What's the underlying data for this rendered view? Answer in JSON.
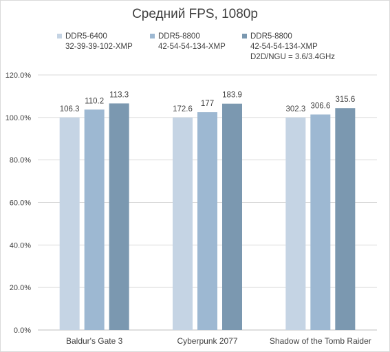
{
  "chart_data": {
    "type": "bar",
    "title": "Средний FPS, 1080p",
    "categories": [
      "Baldur's Gate 3",
      "Cyberpunk 2077",
      "Shadow of the Tomb Raider"
    ],
    "series": [
      {
        "name": "DDR5-6400",
        "name_lines": [
          "DDR5-6400",
          "32-39-39-102-XMP"
        ],
        "color": "#c5d4e4",
        "values": [
          100.0,
          100.0,
          100.0
        ],
        "labels": [
          "106.3",
          "172.6",
          "302.3"
        ]
      },
      {
        "name": "DDR5-8800",
        "name_lines": [
          "DDR5-8800",
          "42-54-54-134-XMP"
        ],
        "color": "#9db8d2",
        "values": [
          103.7,
          102.5,
          101.4
        ],
        "labels": [
          "110.2",
          "177",
          "306.6"
        ]
      },
      {
        "name": "DDR5-8800",
        "name_lines": [
          "DDR5-8800",
          "42-54-54-134-XMP",
          "D2D/NGU = 3.6/3.4GHz"
        ],
        "color": "#7b98b0",
        "values": [
          106.6,
          106.5,
          104.4
        ],
        "labels": [
          "113.3",
          "183.9",
          "315.6"
        ]
      }
    ],
    "yticks": [
      "0.0%",
      "20.0%",
      "40.0%",
      "60.0%",
      "80.0%",
      "100.0%",
      "120.0%"
    ],
    "ylim": [
      0,
      120
    ],
    "grid": true,
    "legend": "top"
  }
}
